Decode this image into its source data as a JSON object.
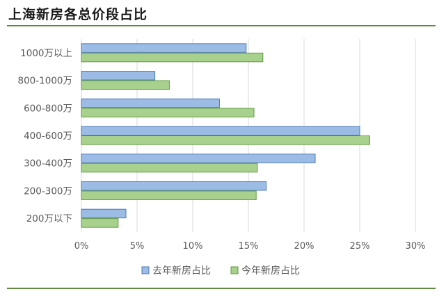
{
  "chart_data": {
    "type": "bar",
    "orientation": "horizontal",
    "title": "上海新房各总价段占比",
    "categories": [
      "1000万以上",
      "800-1000万",
      "600-800万",
      "400-600万",
      "300-400万",
      "200-300万",
      "200万以下"
    ],
    "series": [
      {
        "name": "去年新房占比",
        "values": [
          14.8,
          6.6,
          12.4,
          25.0,
          21.0,
          16.6,
          4.0
        ]
      },
      {
        "name": "今年新房占比",
        "values": [
          16.3,
          7.9,
          15.5,
          25.9,
          15.8,
          15.7,
          3.3
        ]
      }
    ],
    "xlim": [
      0,
      30
    ],
    "xticks": [
      "0%",
      "5%",
      "10%",
      "15%",
      "20%",
      "25%",
      "30%"
    ],
    "xtick_values": [
      0,
      5,
      10,
      15,
      20,
      25,
      30
    ],
    "grid": "vertical",
    "legend_position": "bottom",
    "colors": {
      "series0_fill": "#9cbce6",
      "series0_stroke": "#4a78b8",
      "series1_fill": "#a9d18e",
      "series1_stroke": "#5d9a3c",
      "grid": "#d9d9d9",
      "axis_text": "#595959"
    }
  }
}
